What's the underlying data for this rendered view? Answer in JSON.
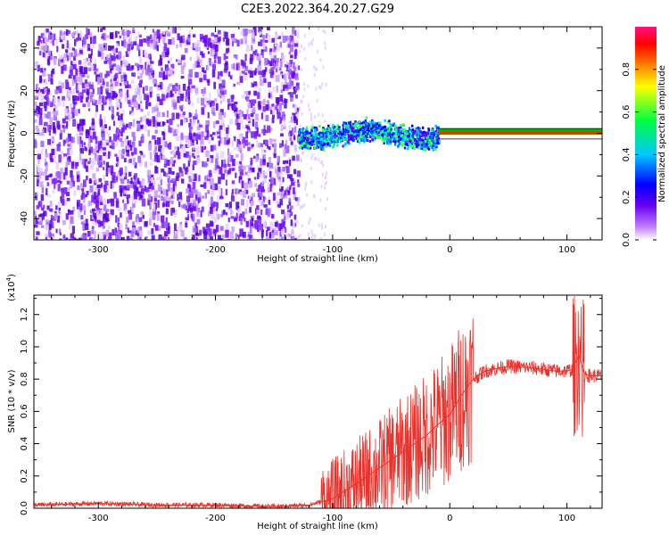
{
  "title": "C2E3.2022.364.20.27.G29",
  "chart_data": [
    {
      "type": "heatmap",
      "title": "C2E3.2022.364.20.27.G29",
      "xlabel": "Height of straight line (km)",
      "ylabel": "Frequency (Hz)",
      "xlim": [
        -355,
        130
      ],
      "ylim": [
        -50,
        50
      ],
      "x_ticks": [
        -300,
        -200,
        -100,
        0,
        100
      ],
      "x_tick_labels": [
        "-300",
        "-200",
        "-100",
        "0",
        "100"
      ],
      "y_ticks": [
        -40,
        -20,
        0,
        20,
        40
      ],
      "y_tick_labels": [
        "-40",
        "-20",
        "0",
        "20",
        "40"
      ],
      "colorbar": {
        "label": "Normalized spectral amplitude",
        "range": [
          0,
          1
        ],
        "ticks": [
          0.0,
          0.2,
          0.4,
          0.6,
          0.8
        ],
        "tick_labels": [
          "0.0",
          "0.2",
          "0.4",
          "0.6",
          "0.8"
        ],
        "colors": [
          "#ffffff",
          "#c080ff",
          "#6a00f0",
          "#0000ff",
          "#00c8ff",
          "#00ff40",
          "#ffff00",
          "#ff8000",
          "#ff0000",
          "#ff1080"
        ]
      },
      "regions": [
        {
          "x": [
            -355,
            -130
          ],
          "f": [
            -50,
            50
          ],
          "amplitude": 0.15
        },
        {
          "x": [
            -130,
            -10
          ],
          "f": [
            -6,
            6
          ],
          "amplitude": 0.5
        },
        {
          "x": [
            -10,
            130
          ],
          "f": [
            -1,
            1
          ],
          "amplitude": 0.85
        }
      ]
    },
    {
      "type": "line",
      "xlabel": "Height of straight line (km)",
      "ylabel": "SNR (10 * v/v)",
      "y_multiplier": "(x10",
      "y_multiplier_exp": "4",
      "y_multiplier_close": ")",
      "xlim": [
        -355,
        130
      ],
      "ylim": [
        0,
        1.32
      ],
      "x_ticks": [
        -300,
        -200,
        -100,
        0,
        100
      ],
      "x_tick_labels": [
        "-300",
        "-200",
        "-100",
        "0",
        "100"
      ],
      "y_ticks": [
        0.0,
        0.2,
        0.4,
        0.6,
        0.8,
        1.0,
        1.2
      ],
      "y_tick_labels": [
        "0.0",
        "0.2",
        "0.4",
        "0.6",
        "0.8",
        "1.0",
        "1.2"
      ],
      "series": [
        {
          "color": "#e8322c",
          "x": [
            -355,
            -300,
            -250,
            -200,
            -150,
            -120,
            -100,
            -80,
            -60,
            -40,
            -20,
            -10,
            0,
            10,
            20,
            30,
            50,
            70,
            90,
            100,
            105,
            110,
            115,
            120,
            130
          ],
          "y": [
            0.02,
            0.03,
            0.02,
            0.02,
            0.01,
            0.02,
            0.06,
            0.15,
            0.25,
            0.35,
            0.45,
            0.52,
            0.58,
            0.7,
            0.8,
            0.85,
            0.88,
            0.87,
            0.85,
            0.85,
            0.86,
            0.95,
            0.83,
            0.82,
            0.82
          ]
        }
      ]
    }
  ]
}
